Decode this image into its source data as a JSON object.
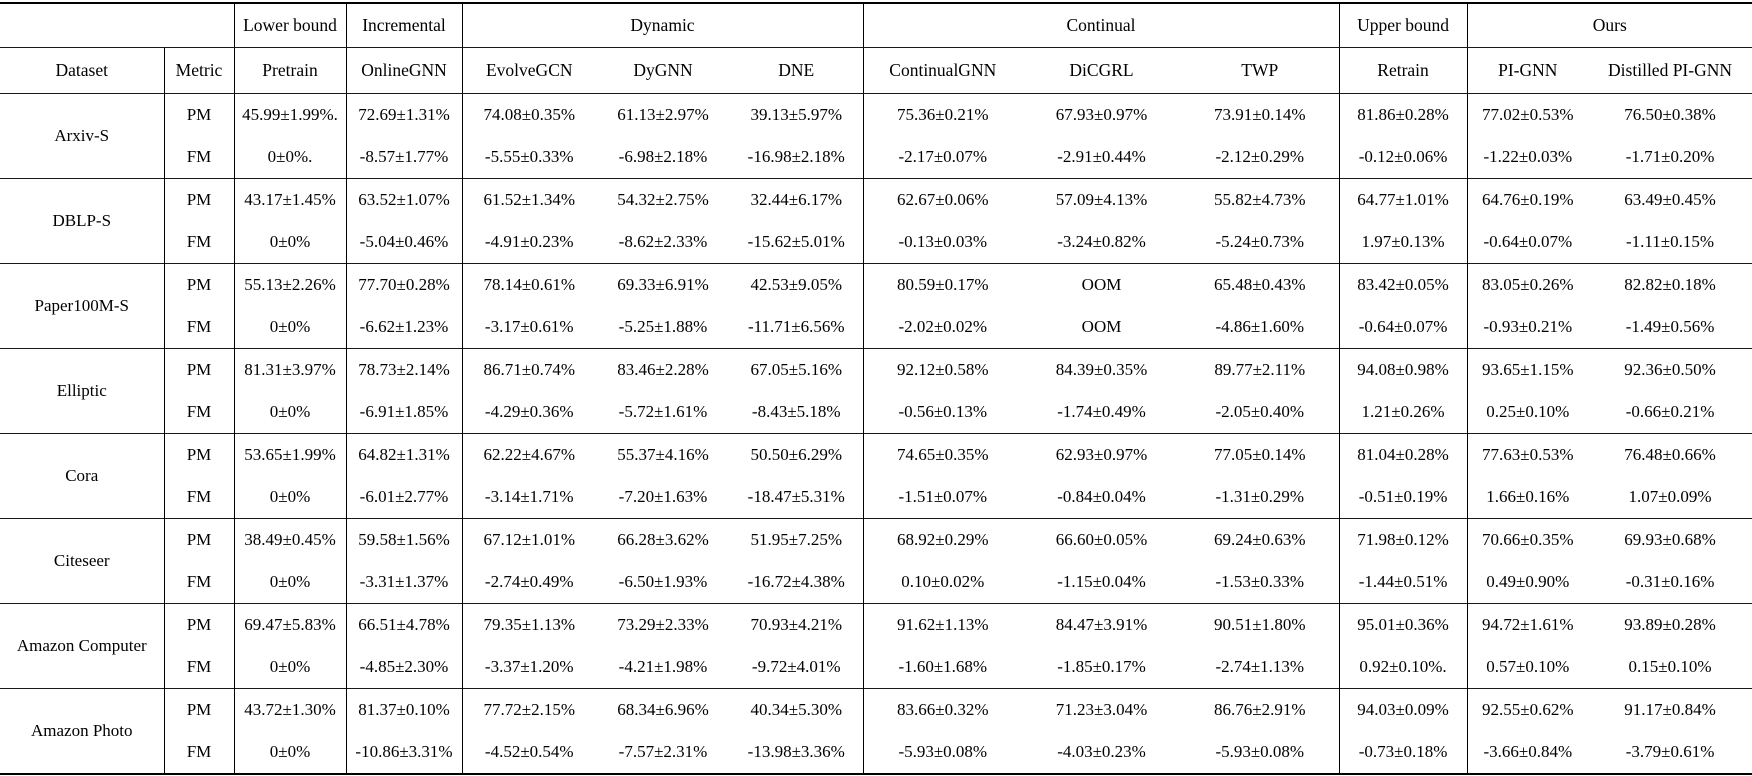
{
  "colors": {
    "text": "#000000",
    "background": "#ffffff",
    "rule": "#1a1a1a"
  },
  "table": {
    "group_headers": [
      {
        "label": "",
        "colspan": 2
      },
      {
        "label": "Lower bound",
        "colspan": 1
      },
      {
        "label": "Incremental",
        "colspan": 1
      },
      {
        "label": "Dynamic",
        "colspan": 3
      },
      {
        "label": "Continual",
        "colspan": 3
      },
      {
        "label": "Upper bound",
        "colspan": 1
      },
      {
        "label": "Ours",
        "colspan": 2
      }
    ],
    "columns": [
      "Dataset",
      "Metric",
      "Pretrain",
      "OnlineGNN",
      "EvolveGCN",
      "DyGNN",
      "DNE",
      "ContinualGNN",
      "DiCGRL",
      "TWP",
      "Retrain",
      "PI-GNN",
      "Distilled PI-GNN"
    ],
    "rows": [
      {
        "dataset": "Arxiv-S",
        "metrics": [
          {
            "metric": "PM",
            "values": [
              "45.99±1.99%.",
              "72.69±1.31%",
              "74.08±0.35%",
              "61.13±2.97%",
              "39.13±5.97%",
              "75.36±0.21%",
              "67.93±0.97%",
              "73.91±0.14%",
              "81.86±0.28%",
              "77.02±0.53%",
              "76.50±0.38%"
            ],
            "bold": [
              8,
              9
            ]
          },
          {
            "metric": "FM",
            "values": [
              "0±0%.",
              "-8.57±1.77%",
              "-5.55±0.33%",
              "-6.98±2.18%",
              "-16.98±2.18%",
              "-2.17±0.07%",
              "-2.91±0.44%",
              "-2.12±0.29%",
              "-0.12±0.06%",
              "-1.22±0.03%",
              "-1.71±0.20%"
            ],
            "bold": [
              8,
              9
            ]
          }
        ]
      },
      {
        "dataset": "DBLP-S",
        "metrics": [
          {
            "metric": "PM",
            "values": [
              "43.17±1.45%",
              "63.52±1.07%",
              "61.52±1.34%",
              "54.32±2.75%",
              "32.44±6.17%",
              "62.67±0.06%",
              "57.09±4.13%",
              "55.82±4.73%",
              "64.77±1.01%",
              "64.76±0.19%",
              "63.49±0.45%"
            ],
            "bold": [
              8,
              9
            ]
          },
          {
            "metric": "FM",
            "values": [
              "0±0%",
              "-5.04±0.46%",
              "-4.91±0.23%",
              "-8.62±2.33%",
              "-15.62±5.01%",
              "-0.13±0.03%",
              "-3.24±0.82%",
              "-5.24±0.73%",
              "1.97±0.13%",
              "-0.64±0.07%",
              "-1.11±0.15%"
            ],
            "bold": [
              5,
              8
            ]
          }
        ]
      },
      {
        "dataset": "Paper100M-S",
        "metrics": [
          {
            "metric": "PM",
            "values": [
              "55.13±2.26%",
              "77.70±0.28%",
              "78.14±0.61%",
              "69.33±6.91%",
              "42.53±9.05%",
              "80.59±0.17%",
              "OOM",
              "65.48±0.43%",
              "83.42±0.05%",
              "83.05±0.26%",
              "82.82±0.18%"
            ],
            "bold": [
              8,
              9
            ]
          },
          {
            "metric": "FM",
            "values": [
              "0±0%",
              "-6.62±1.23%",
              "-3.17±0.61%",
              "-5.25±1.88%",
              "-11.71±6.56%",
              "-2.02±0.02%",
              "OOM",
              "-4.86±1.60%",
              "-0.64±0.07%",
              "-0.93±0.21%",
              "-1.49±0.56%"
            ],
            "bold": [
              8,
              9
            ]
          }
        ]
      },
      {
        "dataset": "Elliptic",
        "metrics": [
          {
            "metric": "PM",
            "values": [
              "81.31±3.97%",
              "78.73±2.14%",
              "86.71±0.74%",
              "83.46±2.28%",
              "67.05±5.16%",
              "92.12±0.58%",
              "84.39±0.35%",
              "89.77±2.11%",
              "94.08±0.98%",
              "93.65±1.15%",
              "92.36±0.50%"
            ],
            "bold": [
              8,
              9
            ]
          },
          {
            "metric": "FM",
            "values": [
              "0±0%",
              "-6.91±1.85%",
              "-4.29±0.36%",
              "-5.72±1.61%",
              "-8.43±5.18%",
              "-0.56±0.13%",
              "-1.74±0.49%",
              "-2.05±0.40%",
              "1.21±0.26%",
              "0.25±0.10%",
              "-0.66±0.21%"
            ],
            "bold": [
              8,
              9
            ]
          }
        ]
      },
      {
        "dataset": "Cora",
        "metrics": [
          {
            "metric": "PM",
            "values": [
              "53.65±1.99%",
              "64.82±1.31%",
              "62.22±4.67%",
              "55.37±4.16%",
              "50.50±6.29%",
              "74.65±0.35%",
              "62.93±0.97%",
              "77.05±0.14%",
              "81.04±0.28%",
              "77.63±0.53%",
              "76.48±0.66%"
            ],
            "bold": [
              8
            ]
          },
          {
            "metric": "FM",
            "values": [
              "0±0%",
              "-6.01±2.77%",
              "-3.14±1.71%",
              "-7.20±1.63%",
              "-18.47±5.31%",
              "-1.51±0.07%",
              "-0.84±0.04%",
              "-1.31±0.29%",
              "-0.51±0.19%",
              "1.66±0.16%",
              "1.07±0.09%"
            ],
            "bold": [
              9,
              10
            ]
          }
        ]
      },
      {
        "dataset": "Citeseer",
        "metrics": [
          {
            "metric": "PM",
            "values": [
              "38.49±0.45%",
              "59.58±1.56%",
              "67.12±1.01%",
              "66.28±3.62%",
              "51.95±7.25%",
              "68.92±0.29%",
              "66.60±0.05%",
              "69.24±0.63%",
              "71.98±0.12%",
              "70.66±0.35%",
              "69.93±0.68%"
            ],
            "bold": [
              8,
              9
            ]
          },
          {
            "metric": "FM",
            "values": [
              "0±0%",
              "-3.31±1.37%",
              "-2.74±0.49%",
              "-6.50±1.93%",
              "-16.72±4.38%",
              "0.10±0.02%",
              "-1.15±0.04%",
              "-1.53±0.33%",
              "-1.44±0.51%",
              "0.49±0.90%",
              "-0.31±0.16%"
            ],
            "bold": [
              5,
              9
            ]
          }
        ]
      },
      {
        "dataset": "Amazon Computer",
        "metrics": [
          {
            "metric": "PM",
            "values": [
              "69.47±5.83%",
              "66.51±4.78%",
              "79.35±1.13%",
              "73.29±2.33%",
              "70.93±4.21%",
              "91.62±1.13%",
              "84.47±3.91%",
              "90.51±1.80%",
              "95.01±0.36%",
              "94.72±1.61%",
              "93.89±0.28%"
            ],
            "bold": [
              8,
              9
            ]
          },
          {
            "metric": "FM",
            "values": [
              "0±0%",
              "-4.85±2.30%",
              "-3.37±1.20%",
              "-4.21±1.98%",
              "-9.72±4.01%",
              "-1.60±1.68%",
              "-1.85±0.17%",
              "-2.74±1.13%",
              "0.92±0.10%.",
              "0.57±0.10%",
              "0.15±0.10%"
            ],
            "bold": [
              8,
              9
            ]
          }
        ]
      },
      {
        "dataset": "Amazon Photo",
        "metrics": [
          {
            "metric": "PM",
            "values": [
              "43.72±1.30%",
              "81.37±0.10%",
              "77.72±2.15%",
              "68.34±6.96%",
              "40.34±5.30%",
              "83.66±0.32%",
              "71.23±3.04%",
              "86.76±2.91%",
              "94.03±0.09%",
              "92.55±0.62%",
              "91.17±0.84%"
            ],
            "bold": [
              8,
              9
            ]
          },
          {
            "metric": "FM",
            "values": [
              "0±0%",
              "-10.86±3.31%",
              "-4.52±0.54%",
              "-7.57±2.31%",
              "-13.98±3.36%",
              "-5.93±0.08%",
              "-4.03±0.23%",
              "-5.93±0.08%",
              "-0.73±0.18%",
              "-3.66±0.84%",
              "-3.79±0.61%"
            ],
            "bold": [
              8,
              9
            ]
          }
        ]
      }
    ]
  }
}
